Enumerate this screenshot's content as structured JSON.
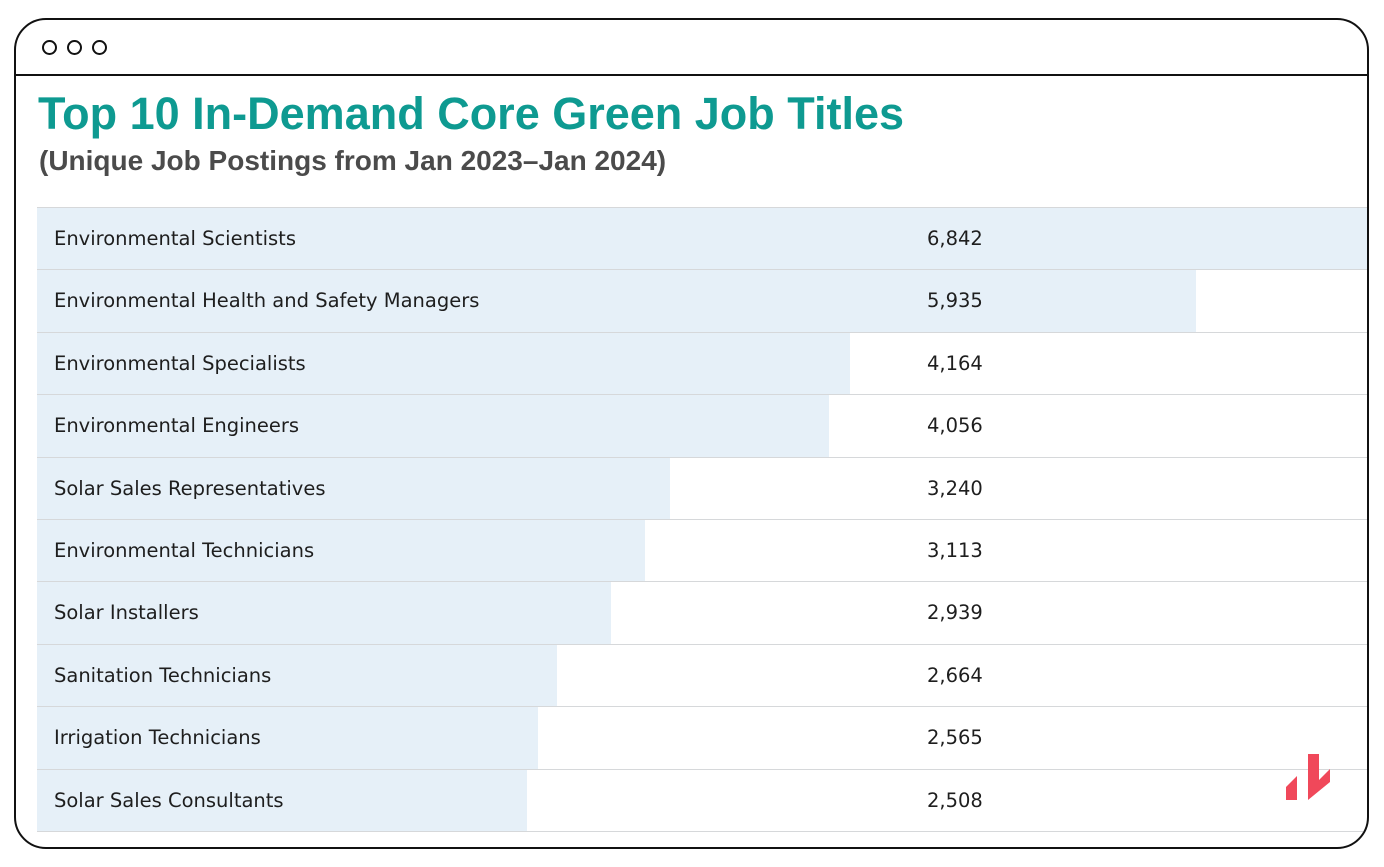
{
  "chart_data": {
    "type": "table",
    "title": "Top 10 In-Demand Core Green Job Titles",
    "subtitle": "(Unique Job Postings from Jan 2023–Jan 2024)",
    "categories": [
      "Environmental Scientists",
      "Environmental Health and Safety Managers",
      "Environmental Specialists",
      "Environmental Engineers",
      "Solar Sales Representatives",
      "Environmental Technicians",
      "Solar Installers",
      "Sanitation Technicians",
      "Irrigation Technicians",
      "Solar Sales Consultants"
    ],
    "values": [
      6842,
      5935,
      4164,
      4056,
      3240,
      3113,
      2939,
      2664,
      2565,
      2508
    ],
    "value_labels": [
      "6,842",
      "5,935",
      "4,164",
      "4,056",
      "3,240",
      "3,113",
      "2,939",
      "2,664",
      "2,565",
      "2,508"
    ],
    "bar_max": 6842
  },
  "colors": {
    "title": "#0e9a91",
    "subtitle": "#4b4b4b",
    "bar_fill": "#e6f0f8",
    "row_border": "#d6d8da",
    "logo": "#f0485a"
  },
  "icons": {
    "window_controls": "three-circle-window-dots",
    "logo": "brand-logo-mark"
  }
}
